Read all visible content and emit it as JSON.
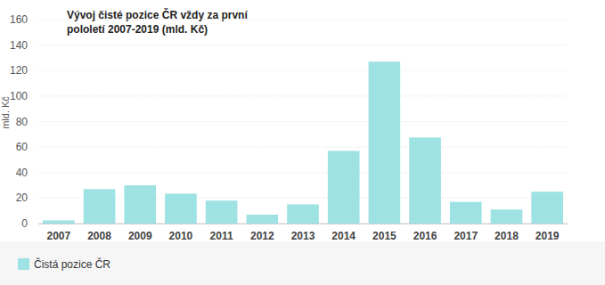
{
  "chart_data": {
    "type": "bar",
    "title": "Vývoj čisté pozice ČR vždy za první pololetí 2007-2019 (mld. Kč)",
    "ylabel": "mld. Kč",
    "categories": [
      "2007",
      "2008",
      "2009",
      "2010",
      "2011",
      "2012",
      "2013",
      "2014",
      "2015",
      "2016",
      "2017",
      "2018",
      "2019"
    ],
    "series": [
      {
        "name": "Čistá pozice ČR",
        "color": "#9ee2e3",
        "values": [
          2.5,
          27,
          30,
          23.5,
          18,
          7,
          15,
          57,
          127,
          67.5,
          17,
          11,
          25
        ]
      }
    ],
    "ylim": [
      0,
      160
    ],
    "yticks": [
      0,
      20,
      40,
      60,
      80,
      100,
      120,
      140,
      160
    ],
    "grid": true,
    "legend": "bottom"
  }
}
